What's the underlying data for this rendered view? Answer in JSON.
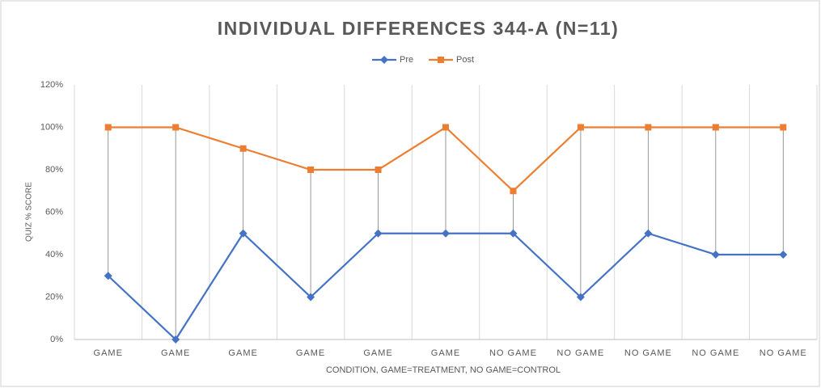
{
  "chart_data": {
    "type": "line",
    "title": "INDIVIDUAL DIFFERENCES 344-A (N=11)",
    "x_label": "CONDITION, GAME=TREATMENT, NO GAME=CONTROL",
    "y_label": "QUIZ % SCORE",
    "categories": [
      "GAME",
      "GAME",
      "GAME",
      "GAME",
      "GAME",
      "GAME",
      "NO GAME",
      "NO GAME",
      "NO GAME",
      "NO GAME",
      "NO GAME"
    ],
    "series": [
      {
        "name": "Pre",
        "color": "#4472c4",
        "marker": "diamond",
        "values": [
          30,
          0,
          50,
          20,
          50,
          50,
          50,
          20,
          50,
          40,
          40
        ]
      },
      {
        "name": "Post",
        "color": "#ed7d31",
        "marker": "square",
        "values": [
          100,
          100,
          90,
          80,
          80,
          100,
          70,
          100,
          100,
          100,
          100
        ]
      }
    ],
    "ylim": [
      0,
      120
    ],
    "yticks": [
      {
        "value": 0,
        "label": "0%"
      },
      {
        "value": 20,
        "label": "20%"
      },
      {
        "value": 40,
        "label": "40%"
      },
      {
        "value": 60,
        "label": "60%"
      },
      {
        "value": 80,
        "label": "80%"
      },
      {
        "value": 100,
        "label": "100%"
      },
      {
        "value": 120,
        "label": "120%"
      }
    ],
    "legend": "top",
    "drop_lines": true
  }
}
